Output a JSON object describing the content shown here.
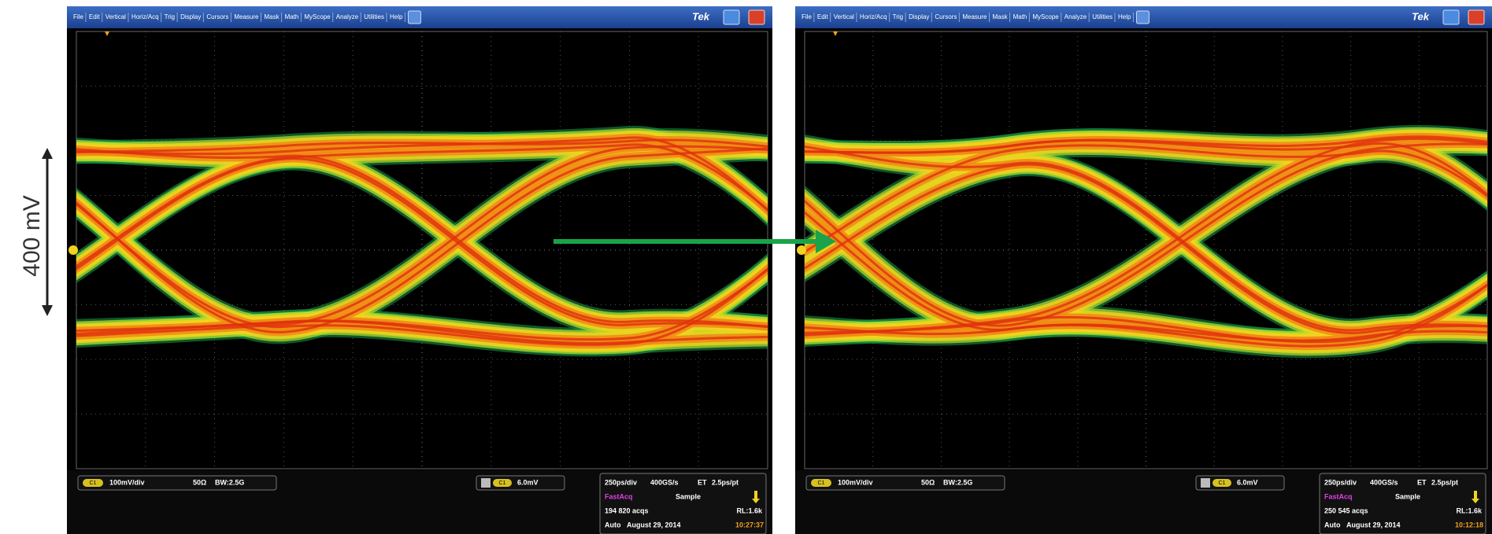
{
  "annotation": {
    "scale_label": "400 mV"
  },
  "scopes": [
    {
      "menu": [
        "File",
        "Edit",
        "Vertical",
        "Horiz/Acq",
        "Trig",
        "Display",
        "Cursors",
        "Measure",
        "Mask",
        "Math",
        "MyScope",
        "Analyze",
        "Utilities",
        "Help"
      ],
      "brand": "Tek",
      "channel": "C1",
      "ch_scale": "100mV/div",
      "termination": "50Ω",
      "bandwidth": "BW:2.5G",
      "trigger_level": "6.0mV",
      "timebase": "250ps/div",
      "sample_rate": "400GS/s",
      "et": "ET",
      "resolution": "2.5ps/pt",
      "acq_mode": "FastAcq",
      "sampling": "Sample",
      "acqs": "194 820 acqs",
      "record": "RL:1.6k",
      "run": "Auto",
      "date": "August 29, 2014",
      "time": "10:27:37"
    },
    {
      "menu": [
        "File",
        "Edit",
        "Vertical",
        "Horiz/Acq",
        "Trig",
        "Display",
        "Cursors",
        "Measure",
        "Mask",
        "Math",
        "MyScope",
        "Analyze",
        "Utilities",
        "Help"
      ],
      "brand": "Tek",
      "channel": "C1",
      "ch_scale": "100mV/div",
      "termination": "50Ω",
      "bandwidth": "BW:2.5G",
      "trigger_level": "6.0mV",
      "timebase": "250ps/div",
      "sample_rate": "400GS/s",
      "et": "ET",
      "resolution": "2.5ps/pt",
      "acq_mode": "FastAcq",
      "sampling": "Sample",
      "acqs": "250 545 acqs",
      "record": "RL:1.6k",
      "run": "Auto",
      "date": "August 29, 2014",
      "time": "10:12:18"
    }
  ]
}
